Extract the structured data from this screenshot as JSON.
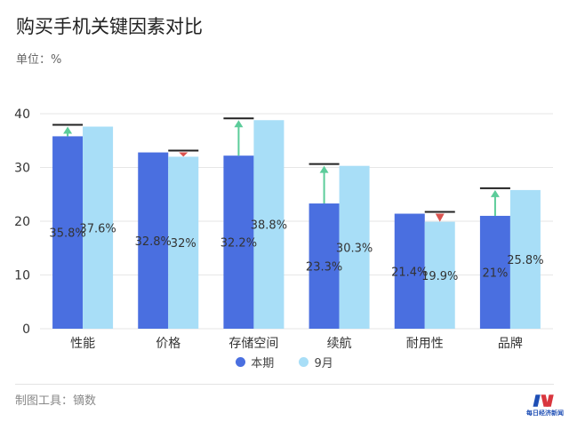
{
  "title": "购买手机关键因素对比",
  "unit": "单位：%",
  "footer": "制图工具：镝数",
  "logo_text": "每日经济新闻",
  "chart_data": {
    "type": "bar",
    "categories": [
      "性能",
      "价格",
      "存储空间",
      "续航",
      "耐用性",
      "品牌"
    ],
    "series": [
      {
        "name": "本期",
        "values": [
          35.8,
          32.8,
          32.2,
          23.3,
          21.4,
          21
        ],
        "labels": [
          "35.8%",
          "32.8%",
          "32.2%",
          "23.3%",
          "21.4%",
          "21%"
        ],
        "color": "#4a6fe0"
      },
      {
        "name": "9月",
        "values": [
          37.6,
          32,
          38.8,
          30.3,
          19.9,
          25.8
        ],
        "labels": [
          "37.6%",
          "32%",
          "38.8%",
          "30.3%",
          "19.9%",
          "25.8%"
        ],
        "color": "#a8def7"
      }
    ],
    "yticks": [
      0,
      10,
      20,
      30,
      40
    ],
    "ylim": [
      0,
      40
    ],
    "grid": true,
    "legend": "bottom",
    "change_colors": {
      "up": "#5ccc9a",
      "down": "#d9534f"
    }
  }
}
